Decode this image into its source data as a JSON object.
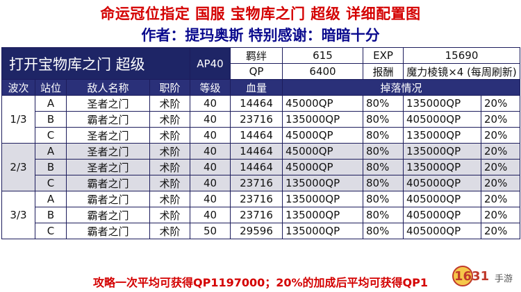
{
  "header": {
    "title": "命运冠位指定  国服  宝物库之门  超级  详细配置图",
    "subtitle": "作者：提玛奥斯  特别感谢：暗暗十分"
  },
  "stage": {
    "name": "打开宝物库之门 超级",
    "ap": "AP40",
    "bond_label": "羁绊",
    "bond_value": "615",
    "exp_label": "EXP",
    "exp_value": "15690",
    "qp_label": "QP",
    "qp_value": "6400",
    "reward_label": "报酬",
    "reward_value": "魔力棱镜×4 (每周刷新)"
  },
  "columns": [
    "波次",
    "站位",
    "敌人名称",
    "职阶",
    "等级",
    "血量",
    "掉落情况"
  ],
  "waves": [
    {
      "wave": "1/3",
      "rows": [
        {
          "pos": "A",
          "name": "圣者之门",
          "cls": "术阶",
          "lv": "40",
          "hp": "14464",
          "d1": "45000QP",
          "p1": "80%",
          "d2": "135000QP",
          "p2": "20%"
        },
        {
          "pos": "B",
          "name": "霸者之门",
          "cls": "术阶",
          "lv": "40",
          "hp": "23716",
          "d1": "135000QP",
          "p1": "80%",
          "d2": "405000QP",
          "p2": "20%"
        },
        {
          "pos": "C",
          "name": "圣者之门",
          "cls": "术阶",
          "lv": "40",
          "hp": "14464",
          "d1": "45000QP",
          "p1": "80%",
          "d2": "135000QP",
          "p2": "20%"
        }
      ]
    },
    {
      "wave": "2/3",
      "rows": [
        {
          "pos": "A",
          "name": "圣者之门",
          "cls": "术阶",
          "lv": "40",
          "hp": "14464",
          "d1": "45000QP",
          "p1": "80%",
          "d2": "135000QP",
          "p2": "20%"
        },
        {
          "pos": "B",
          "name": "圣者之门",
          "cls": "术阶",
          "lv": "40",
          "hp": "14464",
          "d1": "45000QP",
          "p1": "80%",
          "d2": "135000QP",
          "p2": "20%"
        },
        {
          "pos": "C",
          "name": "霸者之门",
          "cls": "术阶",
          "lv": "40",
          "hp": "23716",
          "d1": "135000QP",
          "p1": "80%",
          "d2": "405000QP",
          "p2": "20%"
        }
      ]
    },
    {
      "wave": "3/3",
      "rows": [
        {
          "pos": "A",
          "name": "霸者之门",
          "cls": "术阶",
          "lv": "40",
          "hp": "23716",
          "d1": "135000QP",
          "p1": "80%",
          "d2": "405000QP",
          "p2": "20%"
        },
        {
          "pos": "B",
          "name": "霸者之门",
          "cls": "术阶",
          "lv": "40",
          "hp": "23716",
          "d1": "135000QP",
          "p1": "80%",
          "d2": "405000QP",
          "p2": "20%"
        },
        {
          "pos": "C",
          "name": "霸者之门",
          "cls": "术阶",
          "lv": "50",
          "hp": "29596",
          "d1": "135000QP",
          "p1": "80%",
          "d2": "405000QP",
          "p2": "20%"
        }
      ]
    }
  ],
  "footer": {
    "text": "攻略一次平均可获得QP1197000；20%的加成后平均可获得QP1"
  },
  "logo": {
    "text": "1631",
    "sub": "手游"
  },
  "colors": {
    "title_red": "#d40000",
    "subtitle_blue": "#0b0b8e",
    "header_navy": "#1e2566",
    "alt_row": "#dcdce4"
  }
}
